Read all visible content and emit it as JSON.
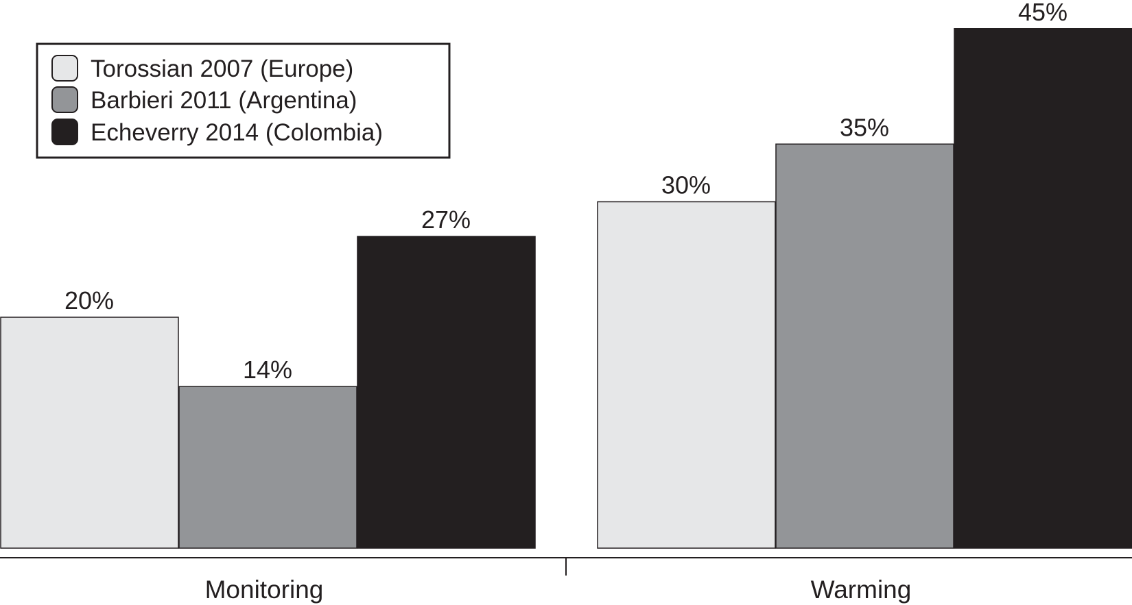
{
  "chart_data": {
    "type": "bar",
    "categories": [
      "Monitoring",
      "Warming"
    ],
    "series": [
      {
        "name": "Torossian 2007 (Europe)",
        "values": [
          20,
          30
        ],
        "labels": [
          "20%",
          "30%"
        ],
        "color": "#e6e7e8"
      },
      {
        "name": "Barbieri 2011 (Argentina)",
        "values": [
          14,
          35
        ],
        "labels": [
          "14%",
          "35%"
        ],
        "color": "#939598"
      },
      {
        "name": "Echeverry 2014 (Colombia)",
        "values": [
          27,
          45
        ],
        "labels": [
          "27%",
          "45%"
        ],
        "color": "#231f20"
      }
    ],
    "unit": "%",
    "ylim": [
      0,
      45
    ],
    "grid": false,
    "legend_position": "top-left",
    "title": "",
    "xlabel": "",
    "ylabel": ""
  }
}
